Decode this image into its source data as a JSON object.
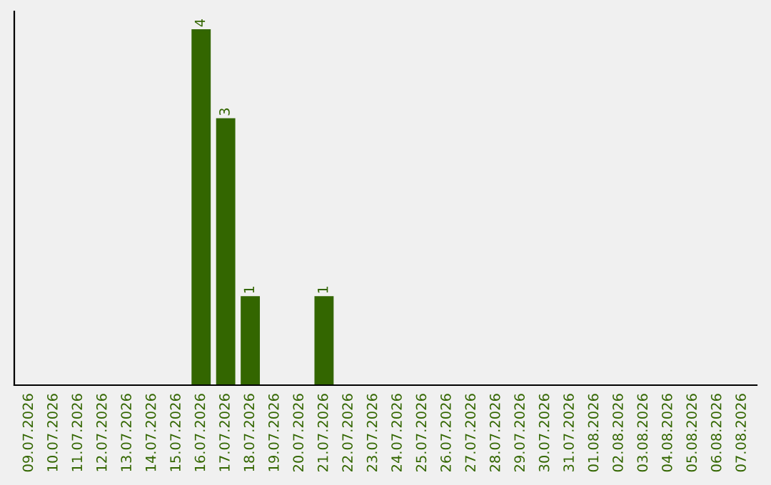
{
  "chart_data": {
    "type": "bar",
    "categories": [
      "09.07.2026",
      "10.07.2026",
      "11.07.2026",
      "12.07.2026",
      "13.07.2026",
      "14.07.2026",
      "15.07.2026",
      "16.07.2026",
      "17.07.2026",
      "18.07.2026",
      "19.07.2026",
      "20.07.2026",
      "21.07.2026",
      "22.07.2026",
      "23.07.2026",
      "24.07.2026",
      "25.07.2026",
      "26.07.2026",
      "27.07.2026",
      "28.07.2026",
      "29.07.2026",
      "30.07.2026",
      "31.07.2026",
      "01.08.2026",
      "02.08.2026",
      "03.08.2026",
      "04.08.2026",
      "05.08.2026",
      "06.08.2026",
      "07.08.2026"
    ],
    "values": [
      0,
      0,
      0,
      0,
      0,
      0,
      0,
      4,
      3,
      1,
      0,
      0,
      1,
      0,
      0,
      0,
      0,
      0,
      0,
      0,
      0,
      0,
      0,
      0,
      0,
      0,
      0,
      0,
      0,
      0
    ],
    "value_labels": [
      null,
      null,
      null,
      null,
      null,
      null,
      null,
      "4",
      "3",
      "1",
      null,
      null,
      "1",
      null,
      null,
      null,
      null,
      null,
      null,
      null,
      null,
      null,
      null,
      null,
      null,
      null,
      null,
      null,
      null,
      null
    ],
    "color": "#336600",
    "tick_labels": "x",
    "grid": false,
    "legend": false
  }
}
